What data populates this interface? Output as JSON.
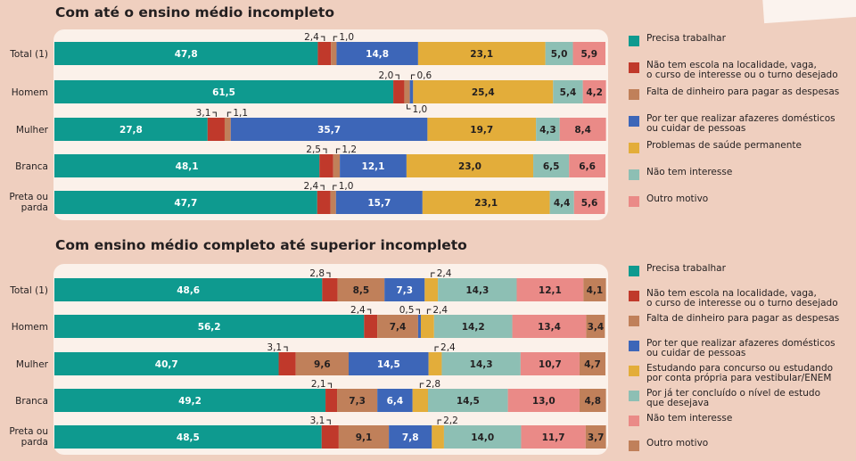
{
  "charts": [
    {
      "title": "Com até o ensino médio incompleto",
      "categories": [
        "Precisa trabalhar",
        "Não tem escola na localidade, vaga,\no curso de interesse ou o turno desejado",
        "Falta de dinheiro para pagar as despesas",
        "Por ter que realizar afazeres domésticos\nou cuidar de pessoas",
        "Problemas de saúde permanente",
        "Não tem interesse",
        "Outro motivo"
      ],
      "colors": [
        "#0e9a8f",
        "#c0392b",
        "#c0805a",
        "#3d66b8",
        "#e3ad3a",
        "#8dbfb4",
        "#ea8a87"
      ],
      "rows": [
        {
          "label": "Total (1)",
          "values": [
            47.8,
            2.4,
            1.0,
            14.8,
            23.1,
            5.0,
            5.9
          ],
          "labels": [
            "47,8",
            "2,4",
            "1,0",
            "14,8",
            "23,1",
            "5,0",
            "5,9"
          ]
        },
        {
          "label": "Homem",
          "values": [
            61.5,
            2.0,
            1.0,
            0.6,
            25.4,
            5.4,
            4.2
          ],
          "labels": [
            "61,5",
            "2,0",
            "1,0",
            "0,6",
            "25,4",
            "5,4",
            "4,2"
          ]
        },
        {
          "label": "Mulher",
          "values": [
            27.8,
            3.1,
            1.1,
            35.7,
            19.7,
            4.3,
            8.4
          ],
          "labels": [
            "27,8",
            "3,1",
            "1,1",
            "35,7",
            "19,7",
            "4,3",
            "8,4"
          ]
        },
        {
          "label": "Branca",
          "values": [
            48.1,
            2.5,
            1.2,
            12.1,
            23.0,
            6.5,
            6.6
          ],
          "labels": [
            "48,1",
            "2,5",
            "1,2",
            "12,1",
            "23,0",
            "6,5",
            "6,6"
          ]
        },
        {
          "label": "Preta ou\nparda",
          "values": [
            47.7,
            2.4,
            1.0,
            15.7,
            23.1,
            4.4,
            5.6
          ],
          "labels": [
            "47,7",
            "2,4",
            "1,0",
            "15,7",
            "23,1",
            "4,4",
            "5,6"
          ]
        }
      ]
    },
    {
      "title": "Com ensino médio completo até superior incompleto",
      "categories": [
        "Precisa trabalhar",
        "Não tem escola na localidade, vaga,\no curso de interesse ou o turno desejado",
        "Falta de dinheiro para pagar as despesas",
        "Por ter que realizar afazeres domésticos\nou cuidar de pessoas",
        "Estudando para concurso ou estudando\npor conta própria para vestibular/ENEM",
        "Por já ter concluído o nível de estudo\nque desejava",
        "Não tem interesse",
        "Outro motivo"
      ],
      "colors": [
        "#0e9a8f",
        "#c0392b",
        "#c0805a",
        "#3d66b8",
        "#e3ad3a",
        "#8dbfb4",
        "#ea8a87",
        "#c0805a"
      ],
      "rows": [
        {
          "label": "Total (1)",
          "values": [
            48.6,
            2.8,
            8.5,
            7.3,
            2.4,
            14.3,
            12.1,
            4.1
          ],
          "labels": [
            "48,6",
            "2,8",
            "8,5",
            "7,3",
            "2,4",
            "14,3",
            "12,1",
            "4,1"
          ]
        },
        {
          "label": "Homem",
          "values": [
            56.2,
            2.4,
            7.4,
            0.5,
            2.4,
            14.2,
            13.4,
            3.4
          ],
          "labels": [
            "56,2",
            "2,4",
            "7,4",
            "0,5",
            "2,4",
            "14,2",
            "13,4",
            "3,4"
          ]
        },
        {
          "label": "Mulher",
          "values": [
            40.7,
            3.1,
            9.6,
            14.5,
            2.4,
            14.3,
            10.7,
            4.7
          ],
          "labels": [
            "40,7",
            "3,1",
            "9,6",
            "14,5",
            "2,4",
            "14,3",
            "10,7",
            "4,7"
          ]
        },
        {
          "label": "Branca",
          "values": [
            49.2,
            2.1,
            7.3,
            6.4,
            2.8,
            14.5,
            13.0,
            4.8
          ],
          "labels": [
            "49,2",
            "2,1",
            "7,3",
            "6,4",
            "2,8",
            "14,5",
            "13,0",
            "4,8"
          ]
        },
        {
          "label": "Preta ou\nparda",
          "values": [
            48.5,
            3.1,
            9.1,
            7.8,
            2.2,
            14.0,
            11.7,
            3.7
          ],
          "labels": [
            "48,5",
            "3,1",
            "9,1",
            "7,8",
            "2,2",
            "14,0",
            "11,7",
            "3,7"
          ]
        }
      ]
    }
  ],
  "chart_data": [
    {
      "type": "bar",
      "stacked": true,
      "orientation": "horizontal",
      "title": "Com até o ensino médio incompleto",
      "categories": [
        "Total (1)",
        "Homem",
        "Mulher",
        "Branca",
        "Preta ou parda"
      ],
      "series": [
        {
          "name": "Precisa trabalhar",
          "values": [
            47.8,
            61.5,
            27.8,
            48.1,
            47.7
          ]
        },
        {
          "name": "Não tem escola na localidade, vaga, o curso de interesse ou o turno desejado",
          "values": [
            2.4,
            2.0,
            3.1,
            2.5,
            2.4
          ]
        },
        {
          "name": "Falta de dinheiro para pagar as despesas",
          "values": [
            1.0,
            1.0,
            1.1,
            1.2,
            1.0
          ]
        },
        {
          "name": "Por ter que realizar afazeres domésticos ou cuidar de pessoas",
          "values": [
            14.8,
            0.6,
            35.7,
            12.1,
            15.7
          ]
        },
        {
          "name": "Problemas de saúde permanente",
          "values": [
            23.1,
            25.4,
            19.7,
            23.0,
            23.1
          ]
        },
        {
          "name": "Não tem interesse",
          "values": [
            5.0,
            5.4,
            4.3,
            6.5,
            4.4
          ]
        },
        {
          "name": "Outro motivo",
          "values": [
            5.9,
            4.2,
            8.4,
            6.6,
            5.6
          ]
        }
      ],
      "xlim": [
        0,
        100
      ],
      "legend": "right"
    },
    {
      "type": "bar",
      "stacked": true,
      "orientation": "horizontal",
      "title": "Com ensino médio completo até superior incompleto",
      "categories": [
        "Total (1)",
        "Homem",
        "Mulher",
        "Branca",
        "Preta ou parda"
      ],
      "series": [
        {
          "name": "Precisa trabalhar",
          "values": [
            48.6,
            56.2,
            40.7,
            49.2,
            48.5
          ]
        },
        {
          "name": "Não tem escola na localidade, vaga, o curso de interesse ou o turno desejado",
          "values": [
            2.8,
            2.4,
            3.1,
            2.1,
            3.1
          ]
        },
        {
          "name": "Falta de dinheiro para pagar as despesas",
          "values": [
            8.5,
            7.4,
            9.6,
            7.3,
            9.1
          ]
        },
        {
          "name": "Por ter que realizar afazeres domésticos ou cuidar de pessoas",
          "values": [
            7.3,
            0.5,
            14.5,
            6.4,
            7.8
          ]
        },
        {
          "name": "Estudando para concurso ou estudando por conta própria para vestibular/ENEM",
          "values": [
            2.4,
            2.4,
            2.4,
            2.8,
            2.2
          ]
        },
        {
          "name": "Por já ter concluído o nível de estudo que desejava",
          "values": [
            14.3,
            14.2,
            14.3,
            14.5,
            14.0
          ]
        },
        {
          "name": "Não tem interesse",
          "values": [
            12.1,
            13.4,
            10.7,
            13.0,
            11.7
          ]
        },
        {
          "name": "Outro motivo",
          "values": [
            4.1,
            3.4,
            4.7,
            4.8,
            3.7
          ]
        }
      ],
      "xlim": [
        0,
        100
      ],
      "legend": "right"
    }
  ]
}
